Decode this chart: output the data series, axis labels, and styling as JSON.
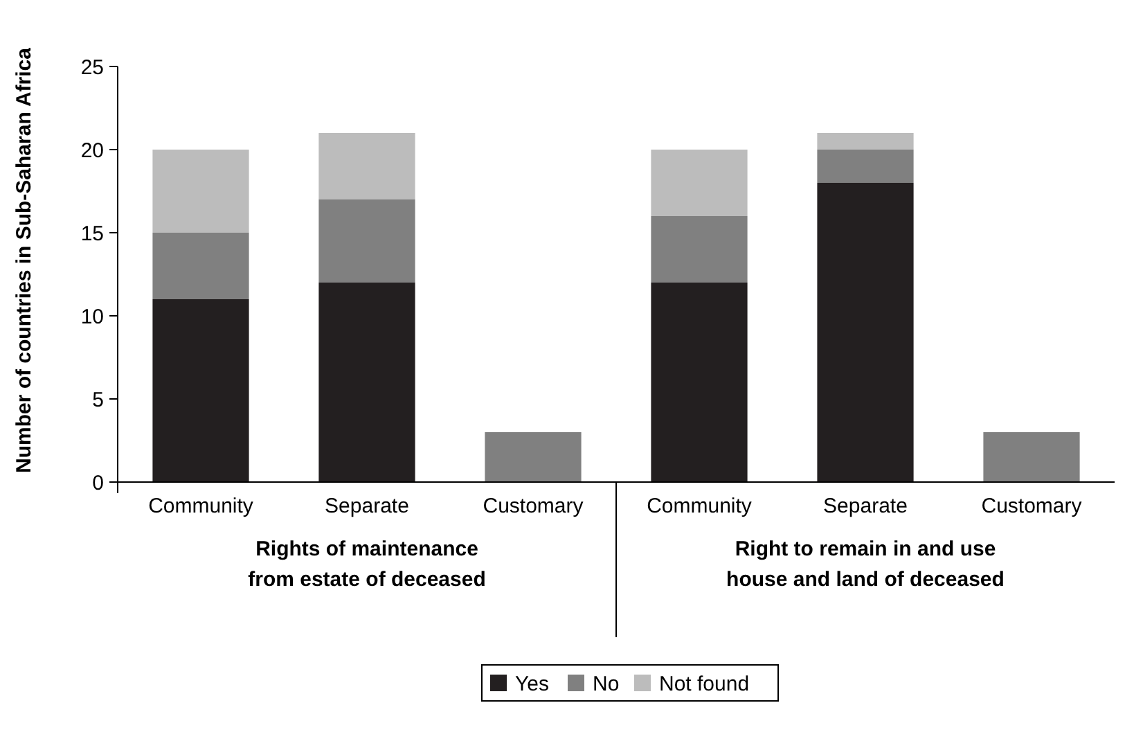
{
  "chart_data": {
    "type": "bar",
    "stacked": true,
    "ylabel": "Number of countries in Sub-Saharan Africa",
    "categories": [
      "Community",
      "Separate",
      "Customary",
      "Community",
      "Separate",
      "Customary"
    ],
    "series": [
      {
        "name": "Yes",
        "color": "#231f20",
        "values": [
          11,
          12,
          0,
          12,
          18,
          0
        ]
      },
      {
        "name": "No",
        "color": "#808080",
        "values": [
          4,
          5,
          3,
          4,
          2,
          3
        ]
      },
      {
        "name": "Not found",
        "color": "#bcbcbc",
        "values": [
          5,
          4,
          0,
          4,
          1,
          0
        ]
      }
    ],
    "ylim": [
      0,
      25
    ],
    "yticks": [
      0,
      5,
      10,
      15,
      20,
      25
    ],
    "grid": false,
    "legend": "bottom",
    "annotations": [
      "Rights of maintenance from estate of deceased",
      "Right to remain in and use house and land of deceased"
    ]
  }
}
